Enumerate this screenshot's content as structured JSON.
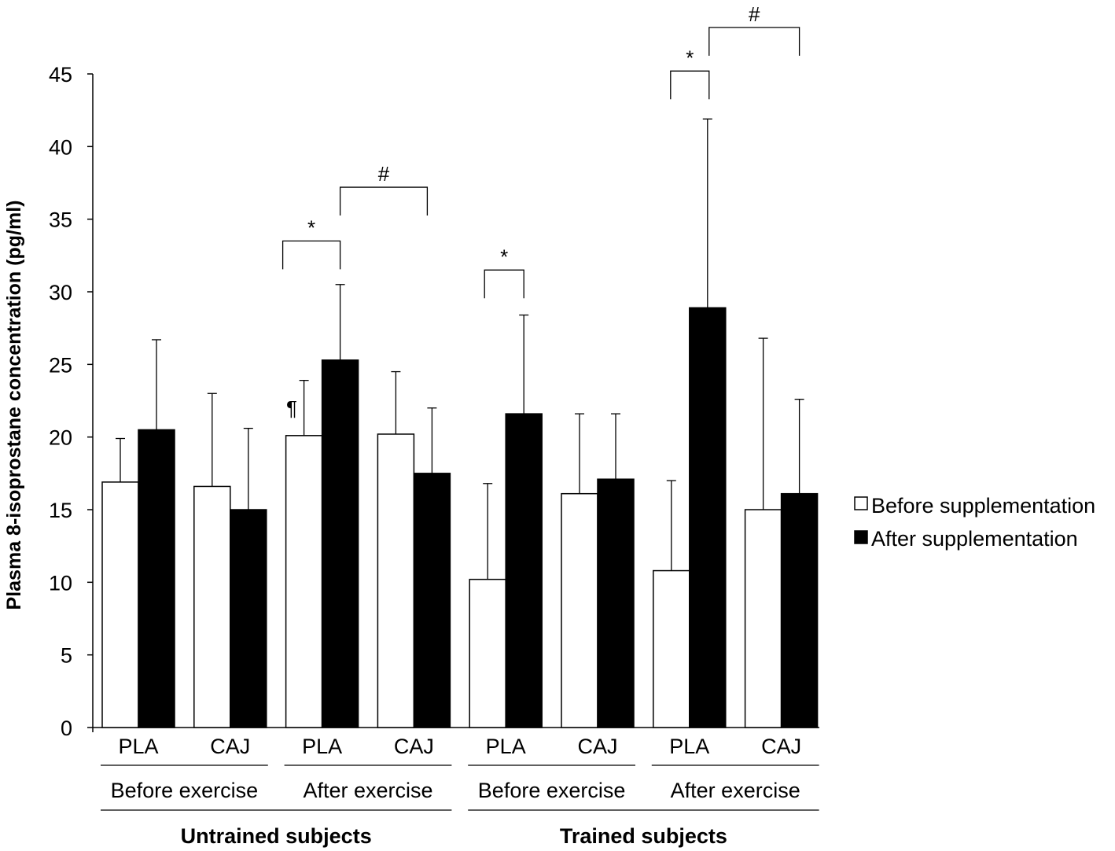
{
  "chart_data": {
    "type": "bar",
    "title": "",
    "ylabel": "Plasma 8-isoprostane concentration (pg/ml)",
    "xlabel": "",
    "ylim": [
      0,
      45
    ],
    "yticks": [
      0,
      5,
      10,
      15,
      20,
      25,
      30,
      35,
      40,
      45
    ],
    "categories": [
      "PLA",
      "CAJ",
      "PLA",
      "CAJ",
      "PLA",
      "CAJ",
      "PLA",
      "CAJ"
    ],
    "exercise_groups": [
      "Before exercise",
      "After exercise",
      "Before exercise",
      "After exercise"
    ],
    "subject_groups": [
      "Untrained subjects",
      "Trained subjects"
    ],
    "series": [
      {
        "name": "Before supplementation",
        "color": "#ffffff",
        "values": [
          16.9,
          16.6,
          20.1,
          20.2,
          10.2,
          16.1,
          10.8,
          15.0
        ],
        "errors": [
          3.0,
          6.4,
          3.8,
          4.3,
          6.6,
          5.5,
          6.2,
          11.8
        ]
      },
      {
        "name": "After supplementation",
        "color": "#000000",
        "values": [
          20.5,
          15.0,
          25.3,
          17.5,
          21.6,
          17.1,
          28.9,
          16.1
        ],
        "errors": [
          6.2,
          5.6,
          5.2,
          4.5,
          6.8,
          4.5,
          13.0,
          6.5
        ]
      }
    ],
    "annotations": {
      "star": "*",
      "hash": "#",
      "pilcrow": "¶"
    },
    "legend_position": "right"
  }
}
